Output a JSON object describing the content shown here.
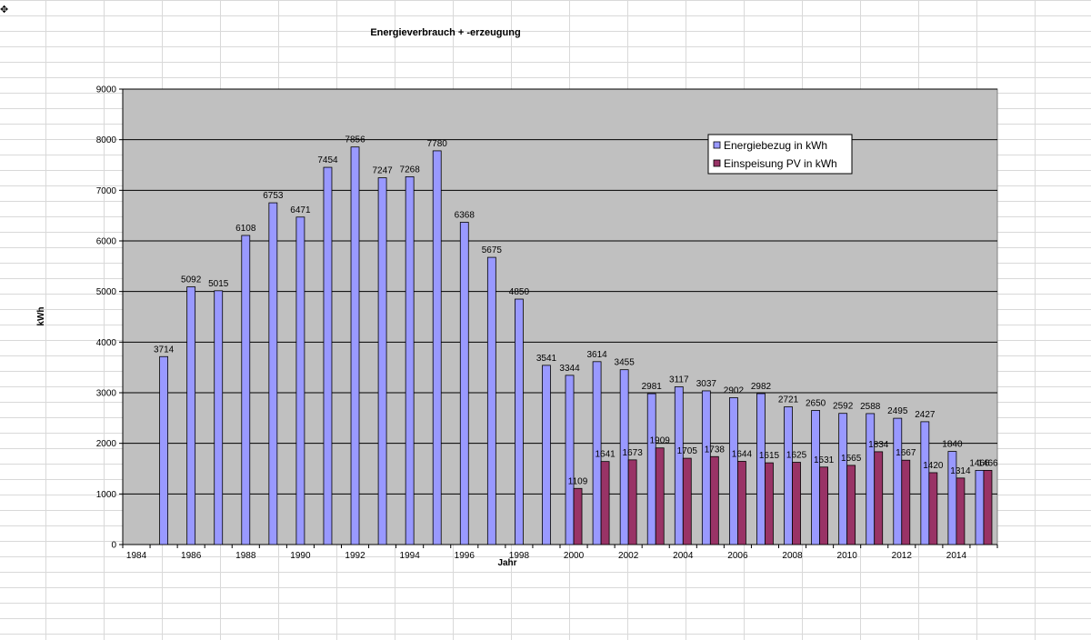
{
  "chart_data": {
    "type": "bar",
    "title": "Energieverbrauch + -erzeugung",
    "xlabel": "Jahr",
    "ylabel": "kWh",
    "ylim": [
      0,
      9000
    ],
    "yticks": [
      0,
      1000,
      2000,
      3000,
      4000,
      5000,
      6000,
      7000,
      8000,
      9000
    ],
    "xlim": [
      1984,
      2015
    ],
    "xticks": [
      1984,
      1986,
      1988,
      1990,
      1992,
      1994,
      1996,
      1998,
      2000,
      2002,
      2004,
      2006,
      2008,
      2010,
      2012,
      2014
    ],
    "grid": true,
    "legend": "top-right",
    "background_color": "#c0c0c0",
    "series": [
      {
        "name": "Energiebezug in kWh",
        "color": "#9999ff",
        "x": [
          1985,
          1986,
          1987,
          1988,
          1989,
          1990,
          1991,
          1992,
          1993,
          1994,
          1995,
          1996,
          1997,
          1998,
          1999,
          2000,
          2001,
          2002,
          2003,
          2004,
          2005,
          2006,
          2007,
          2008,
          2009,
          2010,
          2011,
          2012,
          2013,
          2014,
          2015
        ],
        "values": [
          3714,
          5092,
          5015,
          6108,
          6753,
          6471,
          7454,
          7856,
          7247,
          7268,
          7780,
          6368,
          5675,
          4850,
          3541,
          3344,
          3614,
          3455,
          2981,
          3117,
          3037,
          2902,
          2982,
          2721,
          2650,
          2592,
          2588,
          2495,
          2427,
          1840,
          1466
        ]
      },
      {
        "name": "Einspeisung PV in kWh",
        "color": "#993366",
        "x": [
          2000,
          2001,
          2002,
          2003,
          2004,
          2005,
          2006,
          2007,
          2008,
          2009,
          2010,
          2011,
          2012,
          2013,
          2014,
          2015
        ],
        "values": [
          1109,
          1641,
          1673,
          1909,
          1705,
          1738,
          1644,
          1615,
          1625,
          1531,
          1565,
          1834,
          1667,
          1420,
          1314,
          1466
        ]
      }
    ]
  }
}
